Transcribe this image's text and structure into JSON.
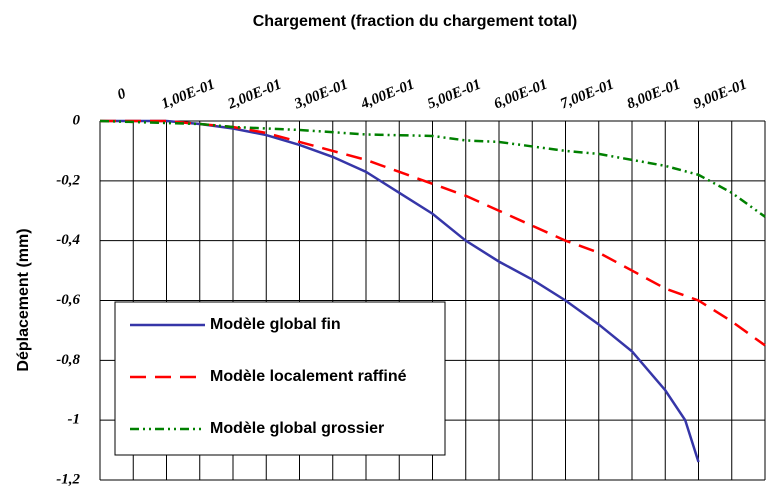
{
  "chart_data": {
    "type": "line",
    "title": "Chargement (fraction du chargement total)",
    "ylabel": "Déplacement (mm)",
    "xlim": [
      0,
      1
    ],
    "ylim": [
      -1.2,
      0
    ],
    "xticks": [
      0,
      {
        "value": 0.1,
        "label": "1,00E-01"
      },
      {
        "value": 0.2,
        "label": "2,00E-01"
      },
      {
        "value": 0.3,
        "label": "3,00E-01"
      },
      {
        "value": 0.4,
        "label": "4,00E-01"
      },
      {
        "value": 0.5,
        "label": "5,00E-01"
      },
      {
        "value": 0.6,
        "label": "6,00E-01"
      },
      {
        "value": 0.7,
        "label": "7,00E-01"
      },
      {
        "value": 0.8,
        "label": "8,00E-01"
      },
      {
        "value": 0.9,
        "label": "9,00E-01"
      }
    ],
    "xminorticks": [
      0.05,
      0.15,
      0.25,
      0.35,
      0.45,
      0.55,
      0.65,
      0.75,
      0.85,
      0.95,
      1
    ],
    "yticks": [
      0,
      {
        "value": -0.2,
        "label": "-0,2"
      },
      {
        "value": -0.4,
        "label": "-0,4"
      },
      {
        "value": -0.6,
        "label": "-0,6"
      },
      {
        "value": -0.8,
        "label": "-0,8"
      },
      -1,
      {
        "value": -1.2,
        "label": "-1,2"
      }
    ],
    "grid": true,
    "series": [
      {
        "name": "Modèle global fin",
        "color": "#3636a8",
        "dash": "none",
        "x": [
          0,
          0.1,
          0.15,
          0.2,
          0.25,
          0.3,
          0.35,
          0.4,
          0.45,
          0.5,
          0.55,
          0.6,
          0.65,
          0.7,
          0.75,
          0.8,
          0.85,
          0.88,
          0.9
        ],
        "values": [
          0,
          0,
          -0.01,
          -0.025,
          -0.047,
          -0.08,
          -0.12,
          -0.17,
          -0.24,
          -0.31,
          -0.4,
          -0.47,
          -0.53,
          -0.6,
          -0.68,
          -0.77,
          -0.9,
          -1.0,
          -1.14
        ]
      },
      {
        "name": "Modèle localement raffiné",
        "color": "#ff0000",
        "dash": "16,9",
        "x": [
          0,
          0.1,
          0.15,
          0.2,
          0.25,
          0.3,
          0.35,
          0.4,
          0.45,
          0.5,
          0.55,
          0.6,
          0.65,
          0.7,
          0.75,
          0.8,
          0.85,
          0.9,
          0.95,
          1
        ],
        "values": [
          0,
          0,
          -0.01,
          -0.02,
          -0.04,
          -0.07,
          -0.1,
          -0.13,
          -0.17,
          -0.21,
          -0.25,
          -0.3,
          -0.35,
          -0.4,
          -0.44,
          -0.5,
          -0.56,
          -0.6,
          -0.67,
          -0.75
        ]
      },
      {
        "name": "Modèle global grossier",
        "color": "#008000",
        "dash": "9,4,2,4,2,4",
        "x": [
          0,
          0.15,
          0.2,
          0.3,
          0.4,
          0.5,
          0.55,
          0.6,
          0.65,
          0.7,
          0.75,
          0.8,
          0.85,
          0.9,
          0.95,
          1
        ],
        "values": [
          0,
          -0.01,
          -0.02,
          -0.03,
          -0.045,
          -0.05,
          -0.065,
          -0.07,
          -0.085,
          -0.1,
          -0.11,
          -0.13,
          -0.15,
          -0.18,
          -0.24,
          -0.32
        ]
      }
    ]
  }
}
